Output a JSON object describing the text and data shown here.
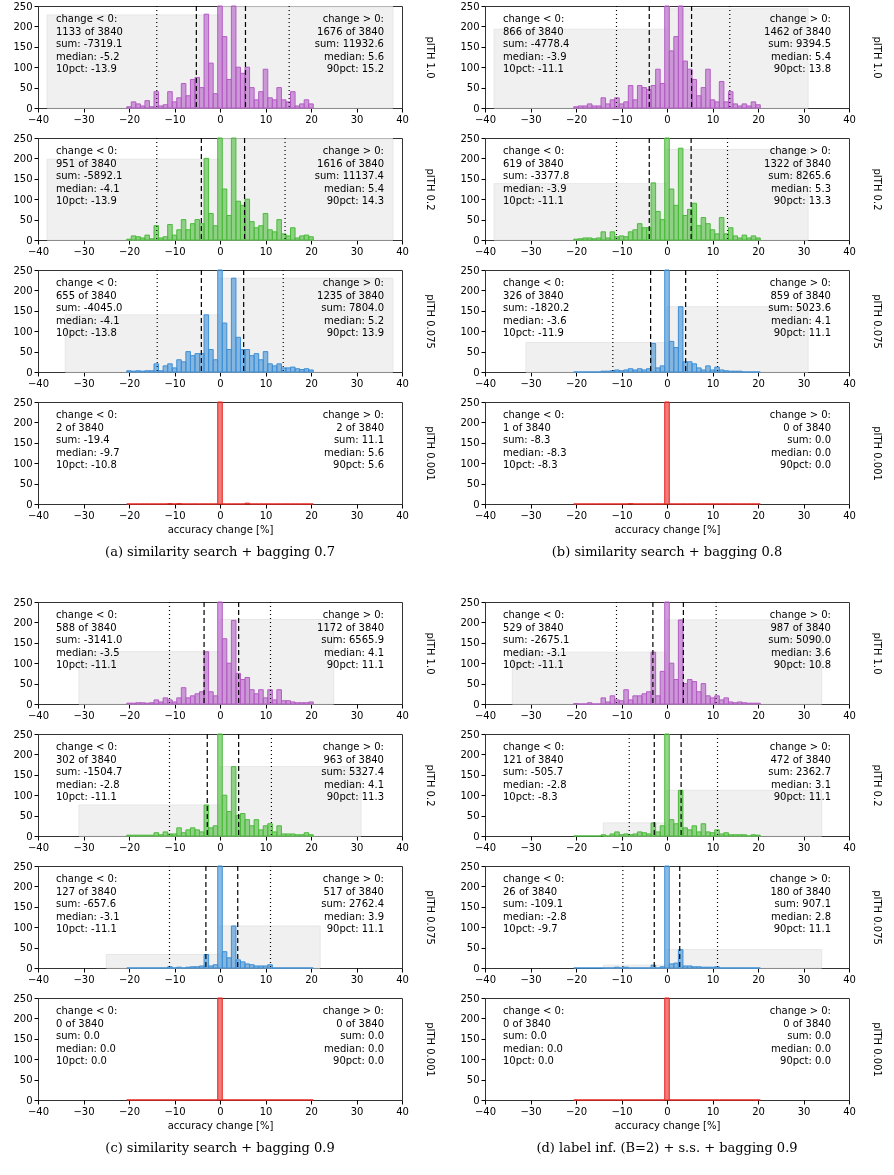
{
  "chart_data": [
    {
      "type": "histogram",
      "ylabel": "pITH 1.0",
      "xlim": [
        -40,
        40
      ],
      "xticks": [
        -40,
        -30,
        -20,
        -10,
        0,
        10,
        20,
        30,
        40
      ],
      "ylim": [
        0,
        250
      ],
      "yticks": [
        0,
        50,
        100,
        150,
        200,
        250
      ],
      "bins": [
        -20.5,
        -19.5,
        -18.5,
        -17.5,
        -16.5,
        -15.5,
        -14.5,
        -13.5,
        -12.5,
        -11.5,
        -10.5,
        -9.5,
        -8.5,
        -7.5,
        -6.5,
        -5.5,
        -4.5,
        -3.5,
        -2.5,
        -1.5,
        -0.5,
        0.5,
        1.5,
        2.5,
        3.5,
        4.5,
        5.5,
        6.5,
        7.5,
        8.5,
        9.5,
        10.5,
        11.5,
        12.5,
        13.5,
        14.5,
        15.5,
        16.5,
        17.5,
        18.5,
        19.5,
        20.5
      ],
      "series": [
        {
          "color": "#e6e6e6",
          "bins": [
            -38,
            0,
            38
          ],
          "values": [
            228,
            248
          ]
        },
        {
          "color": "#b45cc4",
          "values": [
            3,
            15,
            10,
            5,
            18,
            3,
            40,
            5,
            8,
            40,
            15,
            25,
            60,
            30,
            70,
            75,
            50,
            230,
            110,
            35,
            250,
            175,
            70,
            250,
            100,
            85,
            100,
            50,
            20,
            40,
            95,
            25,
            20,
            50,
            20,
            15,
            40,
            5,
            10,
            20,
            10
          ]
        }
      ],
      "ref_lines": [
        {
          "axis": "x",
          "value": -13.9,
          "line_style": "dotted"
        },
        {
          "axis": "x",
          "value": -5.2,
          "line_style": "dashed"
        },
        {
          "axis": "x",
          "value": 5.6,
          "line_style": "dashed"
        },
        {
          "axis": "x",
          "value": 15.2,
          "line_style": "dotted"
        }
      ],
      "annotations": [
        "change < 0:\n1133 of 3840\nsum: -7319.1\nmedian: -5.2\n10pct: -13.9",
        "change > 0:\n1676 of 3840\nsum: 11932.6\nmedian: 5.6\n90pct: 15.2"
      ]
    },
    {
      "type": "histogram",
      "ylabel": "pITH 0.2",
      "xlim": [
        -40,
        40
      ],
      "xticks": [
        -40,
        -30,
        -20,
        -10,
        0,
        10,
        20,
        30,
        40
      ],
      "ylim": [
        0,
        250
      ],
      "yticks": [
        0,
        50,
        100,
        150,
        200,
        250
      ],
      "bins": [
        -20.5,
        -19.5,
        -18.5,
        -17.5,
        -16.5,
        -15.5,
        -14.5,
        -13.5,
        -12.5,
        -11.5,
        -10.5,
        -9.5,
        -8.5,
        -7.5,
        -6.5,
        -5.5,
        -4.5,
        -3.5,
        -2.5,
        -1.5,
        -0.5,
        0.5,
        1.5,
        2.5,
        3.5,
        4.5,
        5.5,
        6.5,
        7.5,
        8.5,
        9.5,
        10.5,
        11.5,
        12.5,
        13.5,
        14.5,
        15.5,
        16.5,
        17.5,
        18.5,
        19.5,
        20.5
      ],
      "series": [
        {
          "color": "#e6e6e6",
          "bins": [
            -38,
            0,
            38
          ],
          "values": [
            198,
            248
          ]
        },
        {
          "color": "#4cbb3c",
          "values": [
            2,
            10,
            8,
            5,
            12,
            3,
            35,
            5,
            8,
            38,
            12,
            25,
            50,
            25,
            40,
            50,
            40,
            200,
            65,
            35,
            250,
            125,
            60,
            250,
            95,
            85,
            100,
            45,
            30,
            35,
            65,
            25,
            20,
            50,
            15,
            10,
            30,
            5,
            10,
            12,
            8
          ]
        }
      ],
      "ref_lines": [
        {
          "axis": "x",
          "value": -13.9,
          "line_style": "dotted"
        },
        {
          "axis": "x",
          "value": -4.1,
          "line_style": "dashed"
        },
        {
          "axis": "x",
          "value": 5.4,
          "line_style": "dashed"
        },
        {
          "axis": "x",
          "value": 14.3,
          "line_style": "dotted"
        }
      ],
      "annotations": [
        "change < 0:\n951 of 3840\nsum: -5892.1\nmedian: -4.1\n10pct: -13.9",
        "change > 0:\n1616 of 3840\nsum: 11137.4\nmedian: 5.4\n90pct: 14.3"
      ]
    },
    {
      "type": "histogram",
      "ylabel": "pITH 0.075",
      "xlim": [
        -40,
        40
      ],
      "xticks": [
        -40,
        -30,
        -20,
        -10,
        0,
        10,
        20,
        30,
        40
      ],
      "ylim": [
        0,
        250
      ],
      "yticks": [
        0,
        50,
        100,
        150,
        200,
        250
      ],
      "bins": [
        -20.5,
        -19.5,
        -18.5,
        -17.5,
        -16.5,
        -15.5,
        -14.5,
        -13.5,
        -12.5,
        -11.5,
        -10.5,
        -9.5,
        -8.5,
        -7.5,
        -6.5,
        -5.5,
        -4.5,
        -3.5,
        -2.5,
        -1.5,
        -0.5,
        0.5,
        1.5,
        2.5,
        3.5,
        4.5,
        5.5,
        6.5,
        7.5,
        8.5,
        9.5,
        10.5,
        11.5,
        12.5,
        13.5,
        14.5,
        15.5,
        16.5,
        17.5,
        18.5,
        19.5,
        20.5
      ],
      "series": [
        {
          "color": "#e6e6e6",
          "bins": [
            -34,
            0,
            38
          ],
          "values": [
            140,
            230
          ]
        },
        {
          "color": "#3d8fd6",
          "values": [
            3,
            2,
            3,
            2,
            3,
            3,
            20,
            3,
            15,
            20,
            10,
            30,
            25,
            50,
            40,
            45,
            45,
            140,
            55,
            30,
            250,
            120,
            55,
            230,
            85,
            55,
            55,
            40,
            45,
            30,
            50,
            20,
            15,
            20,
            10,
            10,
            12,
            8,
            6,
            8,
            5
          ]
        }
      ],
      "ref_lines": [
        {
          "axis": "x",
          "value": -13.8,
          "line_style": "dotted"
        },
        {
          "axis": "x",
          "value": -4.1,
          "line_style": "dashed"
        },
        {
          "axis": "x",
          "value": 5.2,
          "line_style": "dashed"
        },
        {
          "axis": "x",
          "value": 13.9,
          "line_style": "dotted"
        }
      ],
      "annotations": [
        "change < 0:\n655 of 3840\nsum: -4045.0\nmedian: -4.1\n10pct: -13.8",
        "change > 0:\n1235 of 3840\nsum: 7804.0\nmedian: 5.2\n90pct: 13.9"
      ]
    },
    {
      "type": "histogram",
      "ylabel": "pITH 0.001",
      "xlabel": "accuracy change [%]",
      "title": "(a) similarity search + bagging 0.7",
      "xlim": [
        -40,
        40
      ],
      "xticks": [
        -40,
        -30,
        -20,
        -10,
        0,
        10,
        20,
        30,
        40
      ],
      "ylim": [
        0,
        250
      ],
      "yticks": [
        0,
        50,
        100,
        150,
        200,
        250
      ],
      "bins": [
        -20.5,
        -19.5,
        -18.5,
        -17.5,
        -16.5,
        -15.5,
        -14.5,
        -13.5,
        -12.5,
        -11.5,
        -10.5,
        -9.5,
        -8.5,
        -7.5,
        -6.5,
        -5.5,
        -4.5,
        -3.5,
        -2.5,
        -1.5,
        -0.5,
        0.5,
        1.5,
        2.5,
        3.5,
        4.5,
        5.5,
        6.5,
        7.5,
        8.5,
        9.5,
        10.5,
        11.5,
        12.5,
        13.5,
        14.5,
        15.5,
        16.5,
        17.5,
        18.5,
        19.5,
        20.5
      ],
      "series": [
        {
          "color": "#e8251f",
          "values": [
            0,
            0,
            0,
            0,
            0,
            0,
            0,
            0,
            0,
            1,
            0,
            1,
            0,
            0,
            0,
            0,
            0,
            0,
            0,
            0,
            250,
            0,
            0,
            0,
            0,
            0,
            2,
            0,
            0,
            0,
            0,
            0,
            0,
            0,
            0,
            0,
            0,
            0,
            0,
            0,
            0
          ]
        }
      ],
      "annotations": [
        "change < 0:\n2 of 3840\nsum: -19.4\nmedian: -9.7\n10pct: -10.8",
        "change > 0:\n2 of 3840\nsum: 11.1\nmedian: 5.6\n90pct: 5.6"
      ]
    },
    {
      "type": "histogram",
      "ylabel": "pITH 1.0",
      "xlim": [
        -40,
        40
      ],
      "xticks": [
        -40,
        -30,
        -20,
        -10,
        0,
        10,
        20,
        30,
        40
      ],
      "ylim": [
        0,
        250
      ],
      "yticks": [
        0,
        50,
        100,
        150,
        200,
        250
      ],
      "bins": [
        -20.5,
        -19.5,
        -18.5,
        -17.5,
        -16.5,
        -15.5,
        -14.5,
        -13.5,
        -12.5,
        -11.5,
        -10.5,
        -9.5,
        -8.5,
        -7.5,
        -6.5,
        -5.5,
        -4.5,
        -3.5,
        -2.5,
        -1.5,
        -0.5,
        0.5,
        1.5,
        2.5,
        3.5,
        4.5,
        5.5,
        6.5,
        7.5,
        8.5,
        9.5,
        10.5,
        11.5,
        12.5,
        13.5,
        14.5,
        15.5,
        16.5,
        17.5,
        18.5,
        19.5,
        20.5
      ],
      "series": [
        {
          "color": "#e6e6e6",
          "bins": [
            -38,
            0,
            31
          ],
          "values": [
            193,
            243
          ]
        },
        {
          "color": "#b45cc4",
          "values": [
            3,
            5,
            5,
            10,
            5,
            5,
            25,
            10,
            20,
            25,
            10,
            15,
            55,
            20,
            55,
            50,
            45,
            55,
            95,
            60,
            250,
            140,
            175,
            250,
            115,
            95,
            70,
            30,
            50,
            95,
            20,
            15,
            65,
            15,
            40,
            10,
            5,
            10,
            5,
            15,
            8
          ]
        }
      ],
      "ref_lines": [
        {
          "axis": "x",
          "value": -11.1,
          "line_style": "dotted"
        },
        {
          "axis": "x",
          "value": -3.9,
          "line_style": "dashed"
        },
        {
          "axis": "x",
          "value": 5.4,
          "line_style": "dashed"
        },
        {
          "axis": "x",
          "value": 13.8,
          "line_style": "dotted"
        }
      ],
      "annotations": [
        "change < 0:\n866 of 3840\nsum: -4778.4\nmedian: -3.9\n10pct: -11.1",
        "change > 0:\n1462 of 3840\nsum: 9394.5\nmedian: 5.4\n90pct: 13.8"
      ]
    },
    {
      "type": "histogram",
      "ylabel": "pITH 0.2",
      "xlim": [
        -40,
        40
      ],
      "xticks": [
        -40,
        -30,
        -20,
        -10,
        0,
        10,
        20,
        30,
        40
      ],
      "ylim": [
        0,
        250
      ],
      "yticks": [
        0,
        50,
        100,
        150,
        200,
        250
      ],
      "bins": [
        -20.5,
        -19.5,
        -18.5,
        -17.5,
        -16.5,
        -15.5,
        -14.5,
        -13.5,
        -12.5,
        -11.5,
        -10.5,
        -9.5,
        -8.5,
        -7.5,
        -6.5,
        -5.5,
        -4.5,
        -3.5,
        -2.5,
        -1.5,
        -0.5,
        0.5,
        1.5,
        2.5,
        3.5,
        4.5,
        5.5,
        6.5,
        7.5,
        8.5,
        9.5,
        10.5,
        11.5,
        12.5,
        13.5,
        14.5,
        15.5,
        16.5,
        17.5,
        18.5,
        19.5,
        20.5
      ],
      "series": [
        {
          "color": "#e6e6e6",
          "bins": [
            -38,
            0,
            31
          ],
          "values": [
            138,
            222
          ]
        },
        {
          "color": "#4cbb3c",
          "values": [
            2,
            3,
            5,
            5,
            3,
            5,
            20,
            5,
            20,
            8,
            10,
            8,
            20,
            25,
            40,
            30,
            30,
            140,
            70,
            50,
            250,
            125,
            85,
            225,
            60,
            75,
            90,
            35,
            55,
            40,
            25,
            15,
            55,
            15,
            30,
            10,
            5,
            12,
            5,
            10,
            5
          ]
        }
      ],
      "ref_lines": [
        {
          "axis": "x",
          "value": -11.1,
          "line_style": "dotted"
        },
        {
          "axis": "x",
          "value": -3.9,
          "line_style": "dashed"
        },
        {
          "axis": "x",
          "value": 5.3,
          "line_style": "dashed"
        },
        {
          "axis": "x",
          "value": 13.3,
          "line_style": "dotted"
        }
      ],
      "annotations": [
        "change < 0:\n619 of 3840\nsum: -3377.8\nmedian: -3.9\n10pct: -11.1",
        "change > 0:\n1322 of 3840\nsum: 8265.6\nmedian: 5.3\n90pct: 13.3"
      ]
    },
    {
      "type": "histogram",
      "ylabel": "pITH 0.075",
      "xlim": [
        -40,
        40
      ],
      "xticks": [
        -40,
        -30,
        -20,
        -10,
        0,
        10,
        20,
        30,
        40
      ],
      "ylim": [
        0,
        250
      ],
      "yticks": [
        0,
        50,
        100,
        150,
        200,
        250
      ],
      "bins": [
        -20.5,
        -19.5,
        -18.5,
        -17.5,
        -16.5,
        -15.5,
        -14.5,
        -13.5,
        -12.5,
        -11.5,
        -10.5,
        -9.5,
        -8.5,
        -7.5,
        -6.5,
        -5.5,
        -4.5,
        -3.5,
        -2.5,
        -1.5,
        -0.5,
        0.5,
        1.5,
        2.5,
        3.5,
        4.5,
        5.5,
        6.5,
        7.5,
        8.5,
        9.5,
        10.5,
        11.5,
        12.5,
        13.5,
        14.5,
        15.5,
        16.5,
        17.5,
        18.5,
        19.5,
        20.5
      ],
      "series": [
        {
          "color": "#e6e6e6",
          "bins": [
            -31,
            0,
            31
          ],
          "values": [
            72,
            160
          ]
        },
        {
          "color": "#3d8fd6",
          "values": [
            0,
            0,
            0,
            0,
            0,
            0,
            2,
            2,
            3,
            5,
            3,
            5,
            8,
            5,
            8,
            5,
            8,
            70,
            10,
            15,
            250,
            75,
            60,
            160,
            25,
            25,
            20,
            10,
            5,
            15,
            5,
            12,
            5,
            3,
            2,
            2,
            2,
            0,
            0,
            0,
            0
          ]
        }
      ],
      "ref_lines": [
        {
          "axis": "x",
          "value": -11.9,
          "line_style": "dotted"
        },
        {
          "axis": "x",
          "value": -3.6,
          "line_style": "dashed"
        },
        {
          "axis": "x",
          "value": 4.1,
          "line_style": "dashed"
        },
        {
          "axis": "x",
          "value": 11.1,
          "line_style": "dotted"
        }
      ],
      "annotations": [
        "change < 0:\n326 of 3840\nsum: -1820.2\nmedian: -3.6\n10pct: -11.9",
        "change > 0:\n859 of 3840\nsum: 5023.6\nmedian: 4.1\n90pct: 11.1"
      ]
    },
    {
      "type": "histogram",
      "ylabel": "pITH 0.001",
      "xlabel": "accuracy change [%]",
      "title": "(b) similarity search + bagging 0.8",
      "xlim": [
        -40,
        40
      ],
      "xticks": [
        -40,
        -30,
        -20,
        -10,
        0,
        10,
        20,
        30,
        40
      ],
      "ylim": [
        0,
        250
      ],
      "yticks": [
        0,
        50,
        100,
        150,
        200,
        250
      ],
      "bins": [
        -20.5,
        -19.5,
        -18.5,
        -17.5,
        -16.5,
        -15.5,
        -14.5,
        -13.5,
        -12.5,
        -11.5,
        -10.5,
        -9.5,
        -8.5,
        -7.5,
        -6.5,
        -5.5,
        -4.5,
        -3.5,
        -2.5,
        -1.5,
        -0.5,
        0.5,
        1.5,
        2.5,
        3.5,
        4.5,
        5.5,
        6.5,
        7.5,
        8.5,
        9.5,
        10.5,
        11.5,
        12.5,
        13.5,
        14.5,
        15.5,
        16.5,
        17.5,
        18.5,
        19.5,
        20.5
      ],
      "series": [
        {
          "color": "#e8251f",
          "values": [
            0,
            0,
            0,
            0,
            0,
            0,
            0,
            0,
            0,
            0,
            0,
            0,
            1,
            0,
            0,
            0,
            0,
            0,
            0,
            0,
            250,
            0,
            0,
            0,
            0,
            0,
            0,
            0,
            0,
            0,
            0,
            0,
            0,
            0,
            0,
            0,
            0,
            0,
            0,
            0,
            0
          ]
        }
      ],
      "annotations": [
        "change < 0:\n1 of 3840\nsum: -8.3\nmedian: -8.3\n10pct: -8.3",
        "change > 0:\n0 of 3840\nsum: 0.0\nmedian: 0.0\n90pct: 0.0"
      ]
    },
    {
      "type": "histogram",
      "ylabel": "pITH 1.0",
      "xlim": [
        -40,
        40
      ],
      "xticks": [
        -40,
        -30,
        -20,
        -10,
        0,
        10,
        20,
        30,
        40
      ],
      "ylim": [
        0,
        250
      ],
      "yticks": [
        0,
        50,
        100,
        150,
        200,
        250
      ],
      "bins": [
        -20.5,
        -19.5,
        -18.5,
        -17.5,
        -16.5,
        -15.5,
        -14.5,
        -13.5,
        -12.5,
        -11.5,
        -10.5,
        -9.5,
        -8.5,
        -7.5,
        -6.5,
        -5.5,
        -4.5,
        -3.5,
        -2.5,
        -1.5,
        -0.5,
        0.5,
        1.5,
        2.5,
        3.5,
        4.5,
        5.5,
        6.5,
        7.5,
        8.5,
        9.5,
        10.5,
        11.5,
        12.5,
        13.5,
        14.5,
        15.5,
        16.5,
        17.5,
        18.5,
        19.5,
        20.5
      ],
      "series": [
        {
          "color": "#e6e6e6",
          "bins": [
            -31,
            0,
            25
          ],
          "values": [
            128,
            207
          ]
        },
        {
          "color": "#b45cc4",
          "values": [
            2,
            2,
            3,
            3,
            2,
            3,
            10,
            5,
            15,
            10,
            5,
            15,
            40,
            15,
            20,
            25,
            30,
            128,
            30,
            20,
            250,
            160,
            100,
            205,
            75,
            60,
            65,
            35,
            25,
            35,
            15,
            35,
            10,
            35,
            8,
            8,
            5,
            3,
            3,
            3,
            5
          ]
        }
      ],
      "ref_lines": [
        {
          "axis": "x",
          "value": -11.1,
          "line_style": "dotted"
        },
        {
          "axis": "x",
          "value": -3.5,
          "line_style": "dashed"
        },
        {
          "axis": "x",
          "value": 4.1,
          "line_style": "dashed"
        },
        {
          "axis": "x",
          "value": 11.1,
          "line_style": "dotted"
        }
      ],
      "annotations": [
        "change < 0:\n588 of 3840\nsum: -3141.0\nmedian: -3.5\n10pct: -11.1",
        "change > 0:\n1172 of 3840\nsum: 6565.9\nmedian: 4.1\n90pct: 11.1"
      ]
    },
    {
      "type": "histogram",
      "ylabel": "pITH 0.2",
      "xlim": [
        -40,
        40
      ],
      "xticks": [
        -40,
        -30,
        -20,
        -10,
        0,
        10,
        20,
        30,
        40
      ],
      "ylim": [
        0,
        250
      ],
      "yticks": [
        0,
        50,
        100,
        150,
        200,
        250
      ],
      "bins": [
        -20.5,
        -19.5,
        -18.5,
        -17.5,
        -16.5,
        -15.5,
        -14.5,
        -13.5,
        -12.5,
        -11.5,
        -10.5,
        -9.5,
        -8.5,
        -7.5,
        -6.5,
        -5.5,
        -4.5,
        -3.5,
        -2.5,
        -1.5,
        -0.5,
        0.5,
        1.5,
        2.5,
        3.5,
        4.5,
        5.5,
        6.5,
        7.5,
        8.5,
        9.5,
        10.5,
        11.5,
        12.5,
        13.5,
        14.5,
        15.5,
        16.5,
        17.5,
        18.5,
        19.5,
        20.5
      ],
      "series": [
        {
          "color": "#e6e6e6",
          "bins": [
            -31,
            0,
            31
          ],
          "values": [
            76,
            170
          ]
        },
        {
          "color": "#4cbb3c",
          "values": [
            2,
            2,
            2,
            2,
            2,
            2,
            8,
            3,
            10,
            5,
            5,
            20,
            8,
            15,
            20,
            15,
            10,
            76,
            20,
            25,
            250,
            100,
            60,
            170,
            50,
            55,
            40,
            25,
            40,
            15,
            25,
            30,
            10,
            25,
            5,
            5,
            5,
            3,
            3,
            8,
            3
          ]
        }
      ],
      "ref_lines": [
        {
          "axis": "x",
          "value": -11.1,
          "line_style": "dotted"
        },
        {
          "axis": "x",
          "value": -2.8,
          "line_style": "dashed"
        },
        {
          "axis": "x",
          "value": 4.1,
          "line_style": "dashed"
        },
        {
          "axis": "x",
          "value": 11.3,
          "line_style": "dotted"
        }
      ],
      "annotations": [
        "change < 0:\n302 of 3840\nsum: -1504.7\nmedian: -2.8\n10pct: -11.1",
        "change > 0:\n963 of 3840\nsum: 5327.4\nmedian: 4.1\n90pct: 11.3"
      ]
    },
    {
      "type": "histogram",
      "ylabel": "pITH 0.075",
      "xlim": [
        -40,
        40
      ],
      "xticks": [
        -40,
        -30,
        -20,
        -10,
        0,
        10,
        20,
        30,
        40
      ],
      "ylim": [
        0,
        250
      ],
      "yticks": [
        0,
        50,
        100,
        150,
        200,
        250
      ],
      "bins": [
        -20.5,
        -19.5,
        -18.5,
        -17.5,
        -16.5,
        -15.5,
        -14.5,
        -13.5,
        -12.5,
        -11.5,
        -10.5,
        -9.5,
        -8.5,
        -7.5,
        -6.5,
        -5.5,
        -4.5,
        -3.5,
        -2.5,
        -1.5,
        -0.5,
        0.5,
        1.5,
        2.5,
        3.5,
        4.5,
        5.5,
        6.5,
        7.5,
        8.5,
        9.5,
        10.5,
        11.5,
        12.5,
        13.5,
        14.5,
        15.5,
        16.5,
        17.5,
        18.5,
        19.5,
        20.5
      ],
      "series": [
        {
          "color": "#e6e6e6",
          "bins": [
            -25,
            0,
            22
          ],
          "values": [
            33,
            103
          ]
        },
        {
          "color": "#3d8fd6",
          "values": [
            0,
            0,
            0,
            0,
            0,
            0,
            0,
            0,
            0,
            3,
            0,
            2,
            0,
            2,
            3,
            3,
            5,
            33,
            5,
            8,
            250,
            40,
            25,
            103,
            20,
            15,
            10,
            8,
            5,
            5,
            5,
            8,
            0,
            0,
            0,
            0,
            0,
            0,
            0,
            0,
            0
          ]
        }
      ],
      "ref_lines": [
        {
          "axis": "x",
          "value": -11.1,
          "line_style": "dotted"
        },
        {
          "axis": "x",
          "value": -3.1,
          "line_style": "dashed"
        },
        {
          "axis": "x",
          "value": 3.9,
          "line_style": "dashed"
        },
        {
          "axis": "x",
          "value": 11.1,
          "line_style": "dotted"
        }
      ],
      "annotations": [
        "change < 0:\n127 of 3840\nsum: -657.6\nmedian: -3.1\n10pct: -11.1",
        "change > 0:\n517 of 3840\nsum: 2762.4\nmedian: 3.9\n90pct: 11.1"
      ]
    },
    {
      "type": "histogram",
      "ylabel": "pITH 0.001",
      "xlabel": "accuracy change [%]",
      "title": "(c) similarity search + bagging 0.9",
      "xlim": [
        -40,
        40
      ],
      "xticks": [
        -40,
        -30,
        -20,
        -10,
        0,
        10,
        20,
        30,
        40
      ],
      "ylim": [
        0,
        250
      ],
      "yticks": [
        0,
        50,
        100,
        150,
        200,
        250
      ],
      "bins": [
        -20.5,
        -19.5,
        -18.5,
        -17.5,
        -16.5,
        -15.5,
        -14.5,
        -13.5,
        -12.5,
        -11.5,
        -10.5,
        -9.5,
        -8.5,
        -7.5,
        -6.5,
        -5.5,
        -4.5,
        -3.5,
        -2.5,
        -1.5,
        -0.5,
        0.5,
        1.5,
        2.5,
        3.5,
        4.5,
        5.5,
        6.5,
        7.5,
        8.5,
        9.5,
        10.5,
        11.5,
        12.5,
        13.5,
        14.5,
        15.5,
        16.5,
        17.5,
        18.5,
        19.5,
        20.5
      ],
      "series": [
        {
          "color": "#e8251f",
          "values": [
            0,
            0,
            0,
            0,
            0,
            0,
            0,
            0,
            0,
            0,
            0,
            0,
            0,
            0,
            0,
            0,
            0,
            0,
            0,
            0,
            250,
            0,
            0,
            0,
            0,
            0,
            0,
            0,
            0,
            0,
            0,
            0,
            0,
            0,
            0,
            0,
            0,
            0,
            0,
            0,
            0
          ]
        }
      ],
      "annotations": [
        "change < 0:\n0 of 3840\nsum: 0.0\nmedian: 0.0\n10pct: 0.0",
        "change > 0:\n0 of 3840\nsum: 0.0\nmedian: 0.0\n90pct: 0.0"
      ]
    },
    {
      "type": "histogram",
      "ylabel": "pITH 1.0",
      "xlim": [
        -40,
        40
      ],
      "xticks": [
        -40,
        -30,
        -20,
        -10,
        0,
        10,
        20,
        30,
        40
      ],
      "ylim": [
        0,
        250
      ],
      "yticks": [
        0,
        50,
        100,
        150,
        200,
        250
      ],
      "bins": [
        -20.5,
        -19.5,
        -18.5,
        -17.5,
        -16.5,
        -15.5,
        -14.5,
        -13.5,
        -12.5,
        -11.5,
        -10.5,
        -9.5,
        -8.5,
        -7.5,
        -6.5,
        -5.5,
        -4.5,
        -3.5,
        -2.5,
        -1.5,
        -0.5,
        0.5,
        1.5,
        2.5,
        3.5,
        4.5,
        5.5,
        6.5,
        7.5,
        8.5,
        9.5,
        10.5,
        11.5,
        12.5,
        13.5,
        14.5,
        15.5,
        16.5,
        17.5,
        18.5,
        19.5,
        20.5
      ],
      "series": [
        {
          "color": "#e6e6e6",
          "bins": [
            -34,
            0,
            34
          ],
          "values": [
            127,
            206
          ]
        },
        {
          "color": "#b45cc4",
          "values": [
            1,
            0,
            0,
            3,
            0,
            0,
            15,
            5,
            20,
            10,
            8,
            35,
            10,
            20,
            20,
            25,
            30,
            127,
            20,
            80,
            250,
            100,
            60,
            206,
            50,
            60,
            55,
            30,
            50,
            20,
            15,
            20,
            10,
            15,
            5,
            3,
            5,
            3,
            2,
            2,
            2
          ]
        }
      ],
      "ref_lines": [
        {
          "axis": "x",
          "value": -11.1,
          "line_style": "dotted"
        },
        {
          "axis": "x",
          "value": -3.1,
          "line_style": "dashed"
        },
        {
          "axis": "x",
          "value": 3.6,
          "line_style": "dashed"
        },
        {
          "axis": "x",
          "value": 10.8,
          "line_style": "dotted"
        }
      ],
      "annotations": [
        "change < 0:\n529 of 3840\nsum: -2675.1\nmedian: -3.1\n10pct: -11.1",
        "change > 0:\n987 of 3840\nsum: 5090.0\nmedian: 3.6\n90pct: 10.8"
      ]
    },
    {
      "type": "histogram",
      "ylabel": "pITH 0.2",
      "xlim": [
        -40,
        40
      ],
      "xticks": [
        -40,
        -30,
        -20,
        -10,
        0,
        10,
        20,
        30,
        40
      ],
      "ylim": [
        0,
        250
      ],
      "yticks": [
        0,
        50,
        100,
        150,
        200,
        250
      ],
      "bins": [
        -20.5,
        -19.5,
        -18.5,
        -17.5,
        -16.5,
        -15.5,
        -14.5,
        -13.5,
        -12.5,
        -11.5,
        -10.5,
        -9.5,
        -8.5,
        -7.5,
        -6.5,
        -5.5,
        -4.5,
        -3.5,
        -2.5,
        -1.5,
        -0.5,
        0.5,
        1.5,
        2.5,
        3.5,
        4.5,
        5.5,
        6.5,
        7.5,
        8.5,
        9.5,
        10.5,
        11.5,
        12.5,
        13.5,
        14.5,
        15.5,
        16.5,
        17.5,
        18.5,
        19.5,
        20.5
      ],
      "series": [
        {
          "color": "#e6e6e6",
          "bins": [
            -14,
            0,
            34
          ],
          "values": [
            32,
            112
          ]
        },
        {
          "color": "#4cbb3c",
          "values": [
            0,
            0,
            0,
            0,
            0,
            0,
            3,
            0,
            5,
            10,
            3,
            5,
            3,
            5,
            10,
            8,
            5,
            32,
            10,
            25,
            250,
            40,
            30,
            112,
            20,
            15,
            25,
            10,
            30,
            10,
            8,
            15,
            5,
            8,
            3,
            3,
            3,
            3,
            0,
            3,
            2
          ]
        }
      ],
      "ref_lines": [
        {
          "axis": "x",
          "value": -8.3,
          "line_style": "dotted"
        },
        {
          "axis": "x",
          "value": -2.8,
          "line_style": "dashed"
        },
        {
          "axis": "x",
          "value": 3.1,
          "line_style": "dashed"
        },
        {
          "axis": "x",
          "value": 11.1,
          "line_style": "dotted"
        }
      ],
      "annotations": [
        "change < 0:\n121 of 3840\nsum: -505.7\nmedian: -2.8\n10pct: -8.3",
        "change > 0:\n472 of 3840\nsum: 2362.7\nmedian: 3.1\n90pct: 11.1"
      ]
    },
    {
      "type": "histogram",
      "ylabel": "pITH 0.075",
      "xlim": [
        -40,
        40
      ],
      "xticks": [
        -40,
        -30,
        -20,
        -10,
        0,
        10,
        20,
        30,
        40
      ],
      "ylim": [
        0,
        250
      ],
      "yticks": [
        0,
        50,
        100,
        150,
        200,
        250
      ],
      "bins": [
        -20.5,
        -19.5,
        -18.5,
        -17.5,
        -16.5,
        -15.5,
        -14.5,
        -13.5,
        -12.5,
        -11.5,
        -10.5,
        -9.5,
        -8.5,
        -7.5,
        -6.5,
        -5.5,
        -4.5,
        -3.5,
        -2.5,
        -1.5,
        -0.5,
        0.5,
        1.5,
        2.5,
        3.5,
        4.5,
        5.5,
        6.5,
        7.5,
        8.5,
        9.5,
        10.5,
        11.5,
        12.5,
        13.5,
        14.5,
        15.5,
        16.5,
        17.5,
        18.5,
        19.5,
        20.5
      ],
      "series": [
        {
          "color": "#e6e6e6",
          "bins": [
            -14,
            0,
            34
          ],
          "values": [
            7,
            45
          ]
        },
        {
          "color": "#3d8fd6",
          "values": [
            0,
            0,
            0,
            0,
            0,
            0,
            0,
            0,
            0,
            2,
            0,
            2,
            0,
            0,
            0,
            0,
            0,
            7,
            0,
            3,
            250,
            10,
            12,
            45,
            5,
            5,
            3,
            3,
            2,
            2,
            2,
            3,
            0,
            0,
            0,
            0,
            0,
            0,
            0,
            0,
            0
          ]
        }
      ],
      "ref_lines": [
        {
          "axis": "x",
          "value": -9.7,
          "line_style": "dotted"
        },
        {
          "axis": "x",
          "value": -2.8,
          "line_style": "dashed"
        },
        {
          "axis": "x",
          "value": 2.8,
          "line_style": "dashed"
        },
        {
          "axis": "x",
          "value": 11.1,
          "line_style": "dotted"
        }
      ],
      "annotations": [
        "change < 0:\n26 of 3840\nsum: -109.1\nmedian: -2.8\n10pct: -9.7",
        "change > 0:\n180 of 3840\nsum: 907.1\nmedian: 2.8\n90pct: 11.1"
      ]
    },
    {
      "type": "histogram",
      "ylabel": "pITH 0.001",
      "xlabel": "accuracy change [%]",
      "title": "(d) label inf. (B=2) + s.s. + bagging 0.9",
      "xlim": [
        -40,
        40
      ],
      "xticks": [
        -40,
        -30,
        -20,
        -10,
        0,
        10,
        20,
        30,
        40
      ],
      "ylim": [
        0,
        250
      ],
      "yticks": [
        0,
        50,
        100,
        150,
        200,
        250
      ],
      "bins": [
        -20.5,
        -19.5,
        -18.5,
        -17.5,
        -16.5,
        -15.5,
        -14.5,
        -13.5,
        -12.5,
        -11.5,
        -10.5,
        -9.5,
        -8.5,
        -7.5,
        -6.5,
        -5.5,
        -4.5,
        -3.5,
        -2.5,
        -1.5,
        -0.5,
        0.5,
        1.5,
        2.5,
        3.5,
        4.5,
        5.5,
        6.5,
        7.5,
        8.5,
        9.5,
        10.5,
        11.5,
        12.5,
        13.5,
        14.5,
        15.5,
        16.5,
        17.5,
        18.5,
        19.5,
        20.5
      ],
      "series": [
        {
          "color": "#e8251f",
          "values": [
            0,
            0,
            0,
            0,
            0,
            0,
            0,
            0,
            0,
            0,
            0,
            0,
            0,
            0,
            0,
            0,
            0,
            0,
            0,
            0,
            250,
            0,
            0,
            0,
            0,
            0,
            0,
            0,
            0,
            0,
            0,
            0,
            0,
            0,
            0,
            0,
            0,
            0,
            0,
            0,
            0
          ]
        }
      ],
      "annotations": [
        "change < 0:\n0 of 3840\nsum: 0.0\nmedian: 0.0\n10pct: 0.0",
        "change > 0:\n0 of 3840\nsum: 0.0\nmedian: 0.0\n90pct: 0.0"
      ]
    }
  ]
}
